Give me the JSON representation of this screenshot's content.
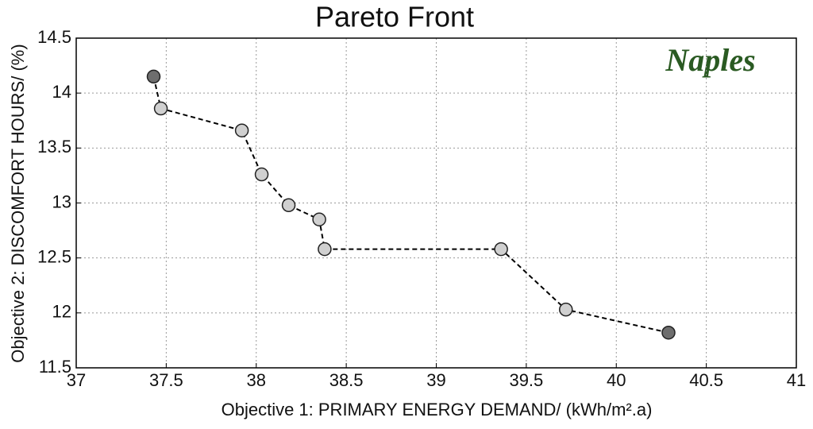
{
  "chart_data": {
    "type": "line",
    "title": "Pareto Front",
    "annotation": "Naples",
    "xlabel": "Objective 1: PRIMARY ENERGY DEMAND/ (kWh/m².a)",
    "ylabel": "Objective 2: DISCOMFORT HOURS/ (%)",
    "x": [
      37.43,
      37.47,
      37.92,
      38.03,
      38.18,
      38.35,
      38.38,
      39.36,
      39.72,
      40.29
    ],
    "series": [
      {
        "color": "#000000",
        "values": [
          14.15,
          13.86,
          13.66,
          13.26,
          12.98,
          12.85,
          12.58,
          12.58,
          12.03,
          11.82
        ],
        "point_colors": [
          "#6e6e6e",
          "#d0d0d0",
          "#d0d0d0",
          "#d0d0d0",
          "#d0d0d0",
          "#d0d0d0",
          "#d0d0d0",
          "#d0d0d0",
          "#d0d0d0",
          "#6e6e6e"
        ]
      }
    ],
    "xlim": [
      37,
      41
    ],
    "xticks": [
      37,
      37.5,
      38,
      38.5,
      39,
      39.5,
      40,
      40.5,
      41
    ],
    "ylim": [
      11.5,
      14.5
    ],
    "yticks": [
      11.5,
      12,
      12.5,
      13,
      13.5,
      14,
      14.5
    ],
    "grid": true
  }
}
